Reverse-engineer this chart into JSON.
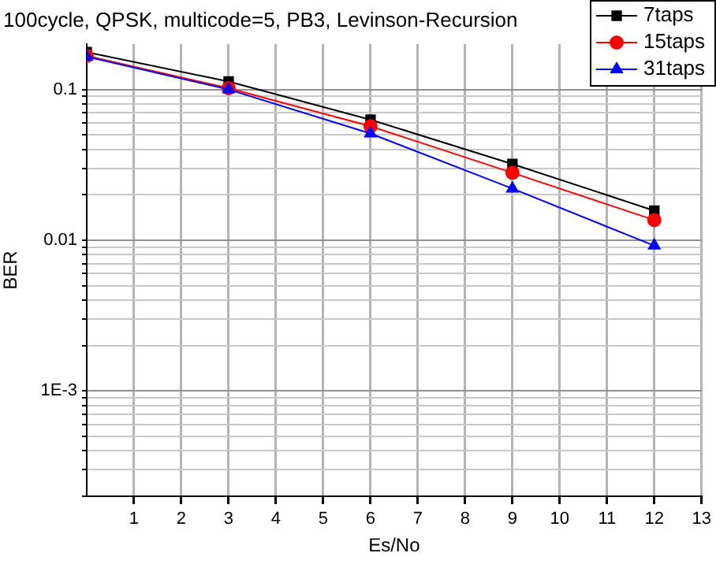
{
  "chart_data": {
    "type": "line",
    "title": "100cycle, QPSK, multicode=5, PB3, Levinson-Recursion",
    "xlabel": "Es/No",
    "ylabel": "BER",
    "x": [
      0,
      3,
      6,
      9,
      12
    ],
    "series": [
      {
        "name": "7taps",
        "color": "#000000",
        "marker": "square",
        "values": [
          0.177,
          0.113,
          0.063,
          0.032,
          0.0157
        ]
      },
      {
        "name": "15taps",
        "color": "#ff0000",
        "marker": "circle",
        "values": [
          0.167,
          0.102,
          0.057,
          0.028,
          0.0136
        ]
      },
      {
        "name": "31taps",
        "color": "#0000ff",
        "marker": "triangle",
        "values": [
          0.165,
          0.1,
          0.051,
          0.022,
          0.0092
        ]
      }
    ],
    "log": "y",
    "grid": true,
    "legend": "top right",
    "line_style": "solid",
    "xlim": [
      0,
      13
    ],
    "xticks": [
      1,
      2,
      3,
      4,
      5,
      6,
      7,
      8,
      9,
      10,
      11,
      12,
      13
    ],
    "ylim": [
      0.0002,
      0.2
    ],
    "yticks": [
      {
        "value": 0.0002,
        "label": null
      },
      {
        "value": 0.0003,
        "label": null
      },
      {
        "value": 0.0004,
        "label": null
      },
      {
        "value": 0.0005,
        "label": null
      },
      {
        "value": 0.0006,
        "label": null
      },
      {
        "value": 0.0007,
        "label": null
      },
      {
        "value": 0.0008,
        "label": null
      },
      {
        "value": 0.0009,
        "label": null
      },
      {
        "value": 0.001,
        "label": "1E-3"
      },
      {
        "value": 0.002,
        "label": null
      },
      {
        "value": 0.003,
        "label": null
      },
      {
        "value": 0.004,
        "label": null
      },
      {
        "value": 0.005,
        "label": null
      },
      {
        "value": 0.006,
        "label": null
      },
      {
        "value": 0.007,
        "label": null
      },
      {
        "value": 0.008,
        "label": null
      },
      {
        "value": 0.009,
        "label": null
      },
      0.01,
      {
        "value": 0.02,
        "label": null
      },
      {
        "value": 0.03,
        "label": null
      },
      {
        "value": 0.04,
        "label": null
      },
      {
        "value": 0.05,
        "label": null
      },
      {
        "value": 0.06,
        "label": null
      },
      {
        "value": 0.07,
        "label": null
      },
      {
        "value": 0.08,
        "label": null
      },
      {
        "value": 0.09,
        "label": null
      },
      0.1
    ]
  }
}
